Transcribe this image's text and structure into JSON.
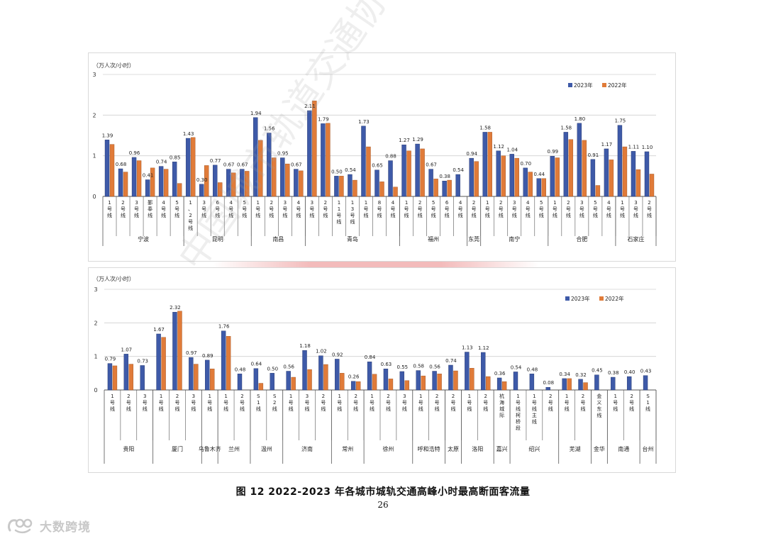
{
  "caption": "图 12   2022-2023 年各城市城轨交通高峰小时最高断面客流量",
  "page_number": "26",
  "watermark_text": "中国城市轨道交通协会",
  "logo_text": "大数跨境",
  "colors": {
    "y2023": "#3e5aa8",
    "y2022": "#e07b39",
    "grid": "#d0d0d0",
    "axis": "#555555"
  },
  "chart_data": [
    {
      "type": "bar",
      "unit": "（万人次/小时）",
      "ylim": [
        0,
        3
      ],
      "yticks": [
        "0",
        "1",
        "2",
        "3"
      ],
      "grid": true,
      "legend_position": "top-right",
      "series": [
        {
          "name": "2023年",
          "color": "#3e5aa8"
        },
        {
          "name": "2022年",
          "color": "#e07b39"
        }
      ],
      "lines": [
        {
          "label": "1号线",
          "city": "宁波",
          "v2023": 1.39,
          "v2022": 1.28,
          "label2023": "1.39"
        },
        {
          "label": "2号线",
          "city": "宁波",
          "v2023": 0.68,
          "v2022": 0.6,
          "label2023": "0.68"
        },
        {
          "label": "3号线",
          "city": "宁波",
          "v2023": 0.96,
          "v2022": 0.88,
          "label2023": "0.96"
        },
        {
          "label": "鄞奉线",
          "city": "宁波",
          "v2023": 0.41,
          "v2022": 0.7,
          "label2023": "0.41"
        },
        {
          "label": "4号线",
          "city": "宁波",
          "v2023": 0.74,
          "v2022": 0.67,
          "label2023": "0.74"
        },
        {
          "label": "5号线",
          "city": "宁波",
          "v2023": 0.85,
          "v2022": 0.32,
          "label2023": "0.85"
        },
        {
          "label": "1、2号线",
          "city": "昆明",
          "v2023": 1.43,
          "v2022": 1.45,
          "label2023": "1.43"
        },
        {
          "label": "3号线",
          "city": "昆明",
          "v2023": 0.3,
          "v2022": 0.76,
          "label2023": "0.30"
        },
        {
          "label": "6号线",
          "city": "昆明",
          "v2023": 0.77,
          "v2022": 0.34,
          "label2023": "0.77"
        },
        {
          "label": "4号线",
          "city": "昆明",
          "v2023": 0.67,
          "v2022": 0.58,
          "label2023": "0.67"
        },
        {
          "label": "5号线",
          "city": "昆明",
          "v2023": 0.67,
          "v2022": 0.62,
          "label2023": "0.67"
        },
        {
          "label": "1号线",
          "city": "南昌",
          "v2023": 1.94,
          "v2022": 1.38,
          "label2023": "1.94"
        },
        {
          "label": "2号线",
          "city": "南昌",
          "v2023": 1.56,
          "v2022": 0.95,
          "label2023": "1.56"
        },
        {
          "label": "3号线",
          "city": "南昌",
          "v2023": 0.95,
          "v2022": 0.8,
          "label2023": "0.95"
        },
        {
          "label": "4号线",
          "city": "南昌",
          "v2023": 0.67,
          "v2022": 0.63,
          "label2023": "0.67"
        },
        {
          "label": "3号线",
          "city": "青岛",
          "v2023": 2.11,
          "v2022": 2.35,
          "label2023": "2.11"
        },
        {
          "label": "2号线",
          "city": "青岛",
          "v2023": 1.79,
          "v2022": 1.8,
          "label2023": "1.79"
        },
        {
          "label": "11号线",
          "city": "青岛",
          "v2023": 0.5,
          "v2022": 0.5,
          "label2023": "0.50"
        },
        {
          "label": "13号线",
          "city": "青岛",
          "v2023": 0.54,
          "v2022": 0.4,
          "label2023": "0.54"
        },
        {
          "label": "1号线",
          "city": "青岛",
          "v2023": 1.73,
          "v2022": 1.22,
          "label2023": "1.73"
        },
        {
          "label": "8号线",
          "city": "青岛",
          "v2023": 0.65,
          "v2022": 0.36,
          "label2023": "0.65"
        },
        {
          "label": "4号线",
          "city": "青岛",
          "v2023": 0.88,
          "v2022": 0.23,
          "label2023": "0.88"
        },
        {
          "label": "1号线",
          "city": "福州",
          "v2023": 1.27,
          "v2022": 1.12,
          "label2023": "1.27"
        },
        {
          "label": "2号线",
          "city": "福州",
          "v2023": 1.29,
          "v2022": 1.17,
          "label2023": "1.29"
        },
        {
          "label": "5号线",
          "city": "福州",
          "v2023": 0.67,
          "v2022": 0.43,
          "label2023": "0.67"
        },
        {
          "label": "6号线",
          "city": "福州",
          "v2023": 0.38,
          "v2022": 0.4,
          "label2023": "0.38"
        },
        {
          "label": "4号线",
          "city": "福州",
          "v2023": 0.54,
          "v2022": 0.0,
          "label2023": "0.54"
        },
        {
          "label": "2号线",
          "city": "东莞",
          "v2023": 0.94,
          "v2022": 0.86,
          "label2023": "0.94"
        },
        {
          "label": "1号线",
          "city": "南宁",
          "v2023": 1.58,
          "v2022": 1.58,
          "label2023": "1.58"
        },
        {
          "label": "2号线",
          "city": "南宁",
          "v2023": 1.12,
          "v2022": 1.0,
          "label2023": "1.12"
        },
        {
          "label": "3号线",
          "city": "南宁",
          "v2023": 1.04,
          "v2022": 0.94,
          "label2023": "1.04"
        },
        {
          "label": "4号线",
          "city": "南宁",
          "v2023": 0.7,
          "v2022": 0.6,
          "label2023": "0.70"
        },
        {
          "label": "5号线",
          "city": "南宁",
          "v2023": 0.44,
          "v2022": 0.44,
          "label2023": "0.44"
        },
        {
          "label": "1号线",
          "city": "合肥",
          "v2023": 0.99,
          "v2022": 0.95,
          "label2023": "0.99"
        },
        {
          "label": "2号线",
          "city": "合肥",
          "v2023": 1.58,
          "v2022": 1.4,
          "label2023": "1.58"
        },
        {
          "label": "3号线",
          "city": "合肥",
          "v2023": 1.8,
          "v2022": 1.38,
          "label2023": "1.80"
        },
        {
          "label": "5号线",
          "city": "合肥",
          "v2023": 0.91,
          "v2022": 0.27,
          "label2023": "0.91"
        },
        {
          "label": "4号线",
          "city": "合肥",
          "v2023": 1.17,
          "v2022": 0.9,
          "label2023": "1.17"
        },
        {
          "label": "1号线",
          "city": "石家庄",
          "v2023": 1.75,
          "v2022": 1.22,
          "label2023": "1.75"
        },
        {
          "label": "3号线",
          "city": "石家庄",
          "v2023": 1.11,
          "v2022": 0.66,
          "label2023": "1.11"
        },
        {
          "label": "2号线",
          "city": "石家庄",
          "v2023": 1.1,
          "v2022": 0.55,
          "label2023": "1.10"
        }
      ]
    },
    {
      "type": "bar",
      "unit": "（万人次/小时）",
      "ylim": [
        0,
        3
      ],
      "yticks": [
        "0",
        "1",
        "2",
        "3"
      ],
      "grid": true,
      "legend_position": "top-right",
      "series": [
        {
          "name": "2023年",
          "color": "#3e5aa8"
        },
        {
          "name": "2022年",
          "color": "#e07b39"
        }
      ],
      "lines": [
        {
          "label": "1号线",
          "city": "贵阳",
          "v2023": 0.79,
          "v2022": 0.72,
          "label2023": "0.79"
        },
        {
          "label": "2号线",
          "city": "贵阳",
          "v2023": 1.07,
          "v2022": 0.77,
          "label2023": "1.07"
        },
        {
          "label": "3号线",
          "city": "贵阳",
          "v2023": 0.73,
          "v2022": 0.0,
          "label2023": "0.73"
        },
        {
          "label": "1号线",
          "city": "厦门",
          "v2023": 1.67,
          "v2022": 1.57,
          "label2023": "1.67"
        },
        {
          "label": "2号线",
          "city": "厦门",
          "v2023": 2.32,
          "v2022": 2.35,
          "label2023": "2.32"
        },
        {
          "label": "3号线",
          "city": "厦门",
          "v2023": 0.97,
          "v2022": 0.77,
          "label2023": "0.97"
        },
        {
          "label": "1号线",
          "city": "乌鲁木齐",
          "v2023": 0.89,
          "v2022": 0.63,
          "label2023": "0.89"
        },
        {
          "label": "1号线",
          "city": "兰州",
          "v2023": 1.76,
          "v2022": 1.6,
          "label2023": "1.76"
        },
        {
          "label": "2号线",
          "city": "兰州",
          "v2023": 0.48,
          "v2022": 0.0,
          "label2023": "0.48"
        },
        {
          "label": "S1线",
          "city": "温州",
          "v2023": 0.64,
          "v2022": 0.2,
          "label2023": "0.64"
        },
        {
          "label": "S2线",
          "city": "温州",
          "v2023": 0.5,
          "v2022": 0.0,
          "label2023": "0.50"
        },
        {
          "label": "1号线",
          "city": "济南",
          "v2023": 0.56,
          "v2022": 0.38,
          "label2023": "0.56"
        },
        {
          "label": "3号线",
          "city": "济南",
          "v2023": 1.18,
          "v2022": 0.61,
          "label2023": "1.18"
        },
        {
          "label": "2号线",
          "city": "济南",
          "v2023": 1.02,
          "v2022": 0.76,
          "label2023": "1.02"
        },
        {
          "label": "1号线",
          "city": "常州",
          "v2023": 0.92,
          "v2022": 0.5,
          "label2023": "0.92"
        },
        {
          "label": "2号线",
          "city": "常州",
          "v2023": 0.26,
          "v2022": 0.25,
          "label2023": "0.26"
        },
        {
          "label": "1号线",
          "city": "徐州",
          "v2023": 0.84,
          "v2022": 0.47,
          "label2023": "0.84"
        },
        {
          "label": "2号线",
          "city": "徐州",
          "v2023": 0.63,
          "v2022": 0.33,
          "label2023": "0.63"
        },
        {
          "label": "3号线",
          "city": "徐州",
          "v2023": 0.55,
          "v2022": 0.28,
          "label2023": "0.55"
        },
        {
          "label": "1号线",
          "city": "呼和浩特",
          "v2023": 0.58,
          "v2022": 0.42,
          "label2023": "0.58"
        },
        {
          "label": "2号线",
          "city": "呼和浩特",
          "v2023": 0.56,
          "v2022": 0.48,
          "label2023": "0.56"
        },
        {
          "label": "2号线",
          "city": "太原",
          "v2023": 0.74,
          "v2022": 0.57,
          "label2023": "0.74"
        },
        {
          "label": "1号线",
          "city": "洛阳",
          "v2023": 1.13,
          "v2022": 0.65,
          "label2023": "1.13"
        },
        {
          "label": "2号线",
          "city": "洛阳",
          "v2023": 1.12,
          "v2022": 0.4,
          "label2023": "1.12"
        },
        {
          "label": "杭海城际",
          "city": "嘉兴",
          "v2023": 0.36,
          "v2022": 0.25,
          "label2023": "0.36"
        },
        {
          "label": "1号线柯桥段",
          "city": "绍兴",
          "v2023": 0.54,
          "v2022": 0.0,
          "label2023": "0.54"
        },
        {
          "label": "1号线主线",
          "city": "绍兴",
          "v2023": 0.48,
          "v2022": 0.0,
          "label2023": "0.48"
        },
        {
          "label": "2号线",
          "city": "绍兴",
          "v2023": 0.08,
          "v2022": 0.0,
          "label2023": "0.08"
        },
        {
          "label": "1号线",
          "city": "芜湖",
          "v2023": 0.34,
          "v2022": 0.34,
          "label2023": "0.34"
        },
        {
          "label": "2号线",
          "city": "芜湖",
          "v2023": 0.32,
          "v2022": 0.22,
          "label2023": "0.32"
        },
        {
          "label": "金义东线",
          "city": "金华",
          "v2023": 0.45,
          "v2022": 0.0,
          "label2023": "0.45"
        },
        {
          "label": "1号线",
          "city": "南通",
          "v2023": 0.38,
          "v2022": 0.0,
          "label2023": "0.38"
        },
        {
          "label": "2号线",
          "city": "南通",
          "v2023": 0.4,
          "v2022": 0.0,
          "label2023": "0.40"
        },
        {
          "label": "S1线",
          "city": "台州",
          "v2023": 0.43,
          "v2022": 0.0,
          "label2023": "0.43"
        }
      ]
    }
  ]
}
